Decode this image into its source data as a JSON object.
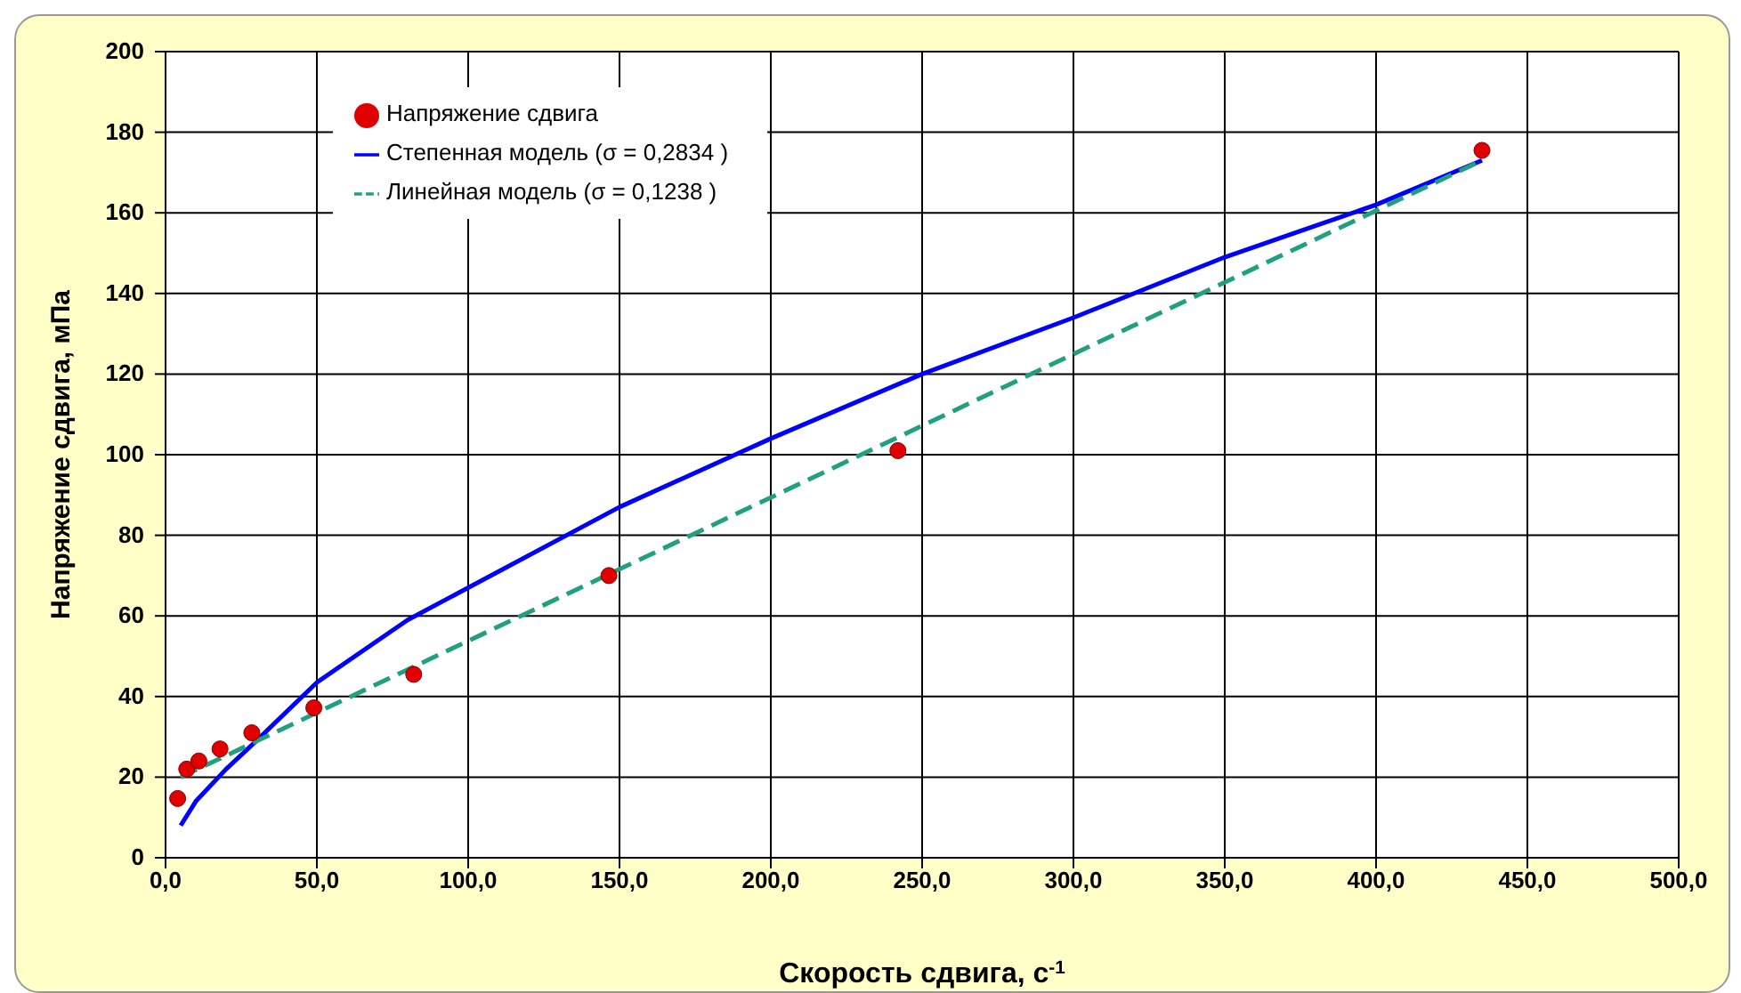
{
  "chart_data": {
    "type": "scatter",
    "xlabel": "Скорость сдвига, с$^{-1}$",
    "ylabel": "Напряжение сдвига, мПа",
    "xlim": [
      0,
      500
    ],
    "xticks": [
      {
        "value": 0,
        "label": "0,0"
      },
      {
        "value": 50,
        "label": "50,0"
      },
      {
        "value": 100,
        "label": "100,0"
      },
      {
        "value": 150,
        "label": "150,0"
      },
      {
        "value": 200,
        "label": "200,0"
      },
      {
        "value": 250,
        "label": "250,0"
      },
      {
        "value": 300,
        "label": "300,0"
      },
      {
        "value": 350,
        "label": "350,0"
      },
      {
        "value": 400,
        "label": "400,0"
      },
      {
        "value": 450,
        "label": "450,0"
      },
      {
        "value": 500,
        "label": "500,0"
      }
    ],
    "ylim": [
      0,
      200
    ],
    "yticks": [
      0,
      20,
      40,
      60,
      80,
      100,
      120,
      140,
      160,
      180,
      200
    ],
    "grid": true,
    "legend": "top left",
    "series": [
      {
        "name": "Напряжение сдвига",
        "marker": "circle",
        "color": "#e00000",
        "x": [
          4,
          7,
          11,
          18,
          28.5,
          49,
          82,
          146.5,
          242,
          435
        ],
        "values": [
          14.7,
          22,
          24,
          27,
          31,
          37.2,
          45.5,
          70,
          101,
          175.5
        ]
      },
      {
        "name": "Степенная модель (σ =  0,2834 )",
        "type": "line",
        "marker": "none",
        "line_style": "solid",
        "color": "#0000ff",
        "x": [
          5,
          10,
          20,
          30,
          50,
          80,
          100,
          150,
          200,
          250,
          300,
          350,
          400,
          435
        ],
        "values": [
          8,
          14,
          22,
          29,
          43.5,
          59,
          67,
          87,
          104,
          120,
          134,
          149,
          162,
          173
        ]
      },
      {
        "name": "Линейная модель (σ = 0,1238 )",
        "type": "line",
        "marker": "none",
        "line_style": "dashed",
        "color": "#20a080",
        "x": [
          5,
          435
        ],
        "values": [
          20,
          173
        ]
      }
    ]
  }
}
